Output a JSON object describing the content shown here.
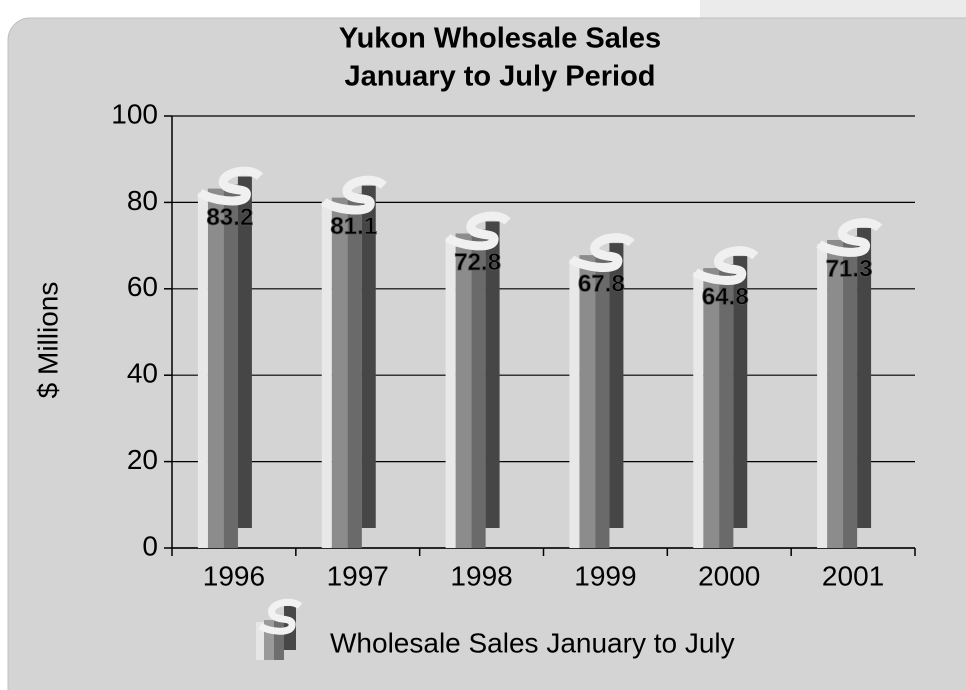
{
  "chart_data": {
    "type": "bar",
    "title": "Yukon Wholesale Sales",
    "subtitle": "January to July Period",
    "y_label": "$ Millions",
    "categories": [
      "1996",
      "1997",
      "1998",
      "1999",
      "2000",
      "2001"
    ],
    "series": [
      {
        "name": "Wholesale Sales January to July",
        "color": "#8c8c8c",
        "values": [
          83.2,
          81.1,
          72.8,
          67.8,
          64.8,
          71.3
        ]
      }
    ],
    "ylim": [
      0,
      100
    ],
    "yticks": [
      0,
      20,
      40,
      60,
      80,
      100
    ],
    "grid": true
  }
}
